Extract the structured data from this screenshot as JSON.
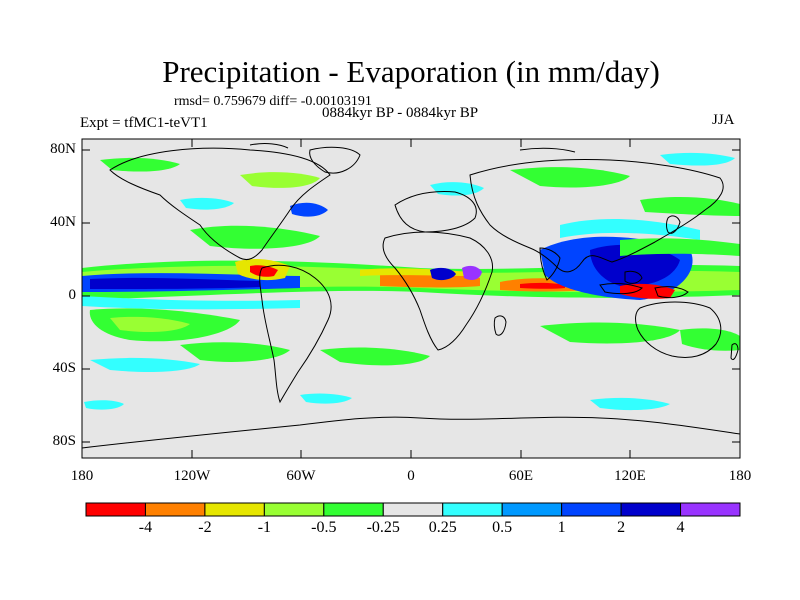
{
  "title": "Precipitation - Evaporation (in mm/day)",
  "stats": "rmsd= 0.759679 diff= -0.00103191",
  "period": "0884kyr BP - 0884kyr BP",
  "experiment": "Expt = tfMC1-teVT1",
  "season": "JJA",
  "axes": {
    "y_labels": [
      "80N",
      "40N",
      "0",
      "40S",
      "80S"
    ],
    "x_labels": [
      "180",
      "120W",
      "60W",
      "0",
      "60E",
      "120E",
      "180"
    ]
  },
  "colorbar": {
    "labels": [
      "-4",
      "-2",
      "-1",
      "-0.5",
      "-0.25",
      "0.25",
      "0.5",
      "1",
      "2",
      "4"
    ],
    "colors": [
      "#ff0000",
      "#ff8000",
      "#e6e600",
      "#99ff33",
      "#33ff33",
      "#e6e6e6",
      "#33ffff",
      "#0099ff",
      "#0044ff",
      "#0000cc",
      "#9933ff"
    ]
  },
  "colors": {
    "ocean_background": "#e6e6e6",
    "coastline": "#000000"
  }
}
